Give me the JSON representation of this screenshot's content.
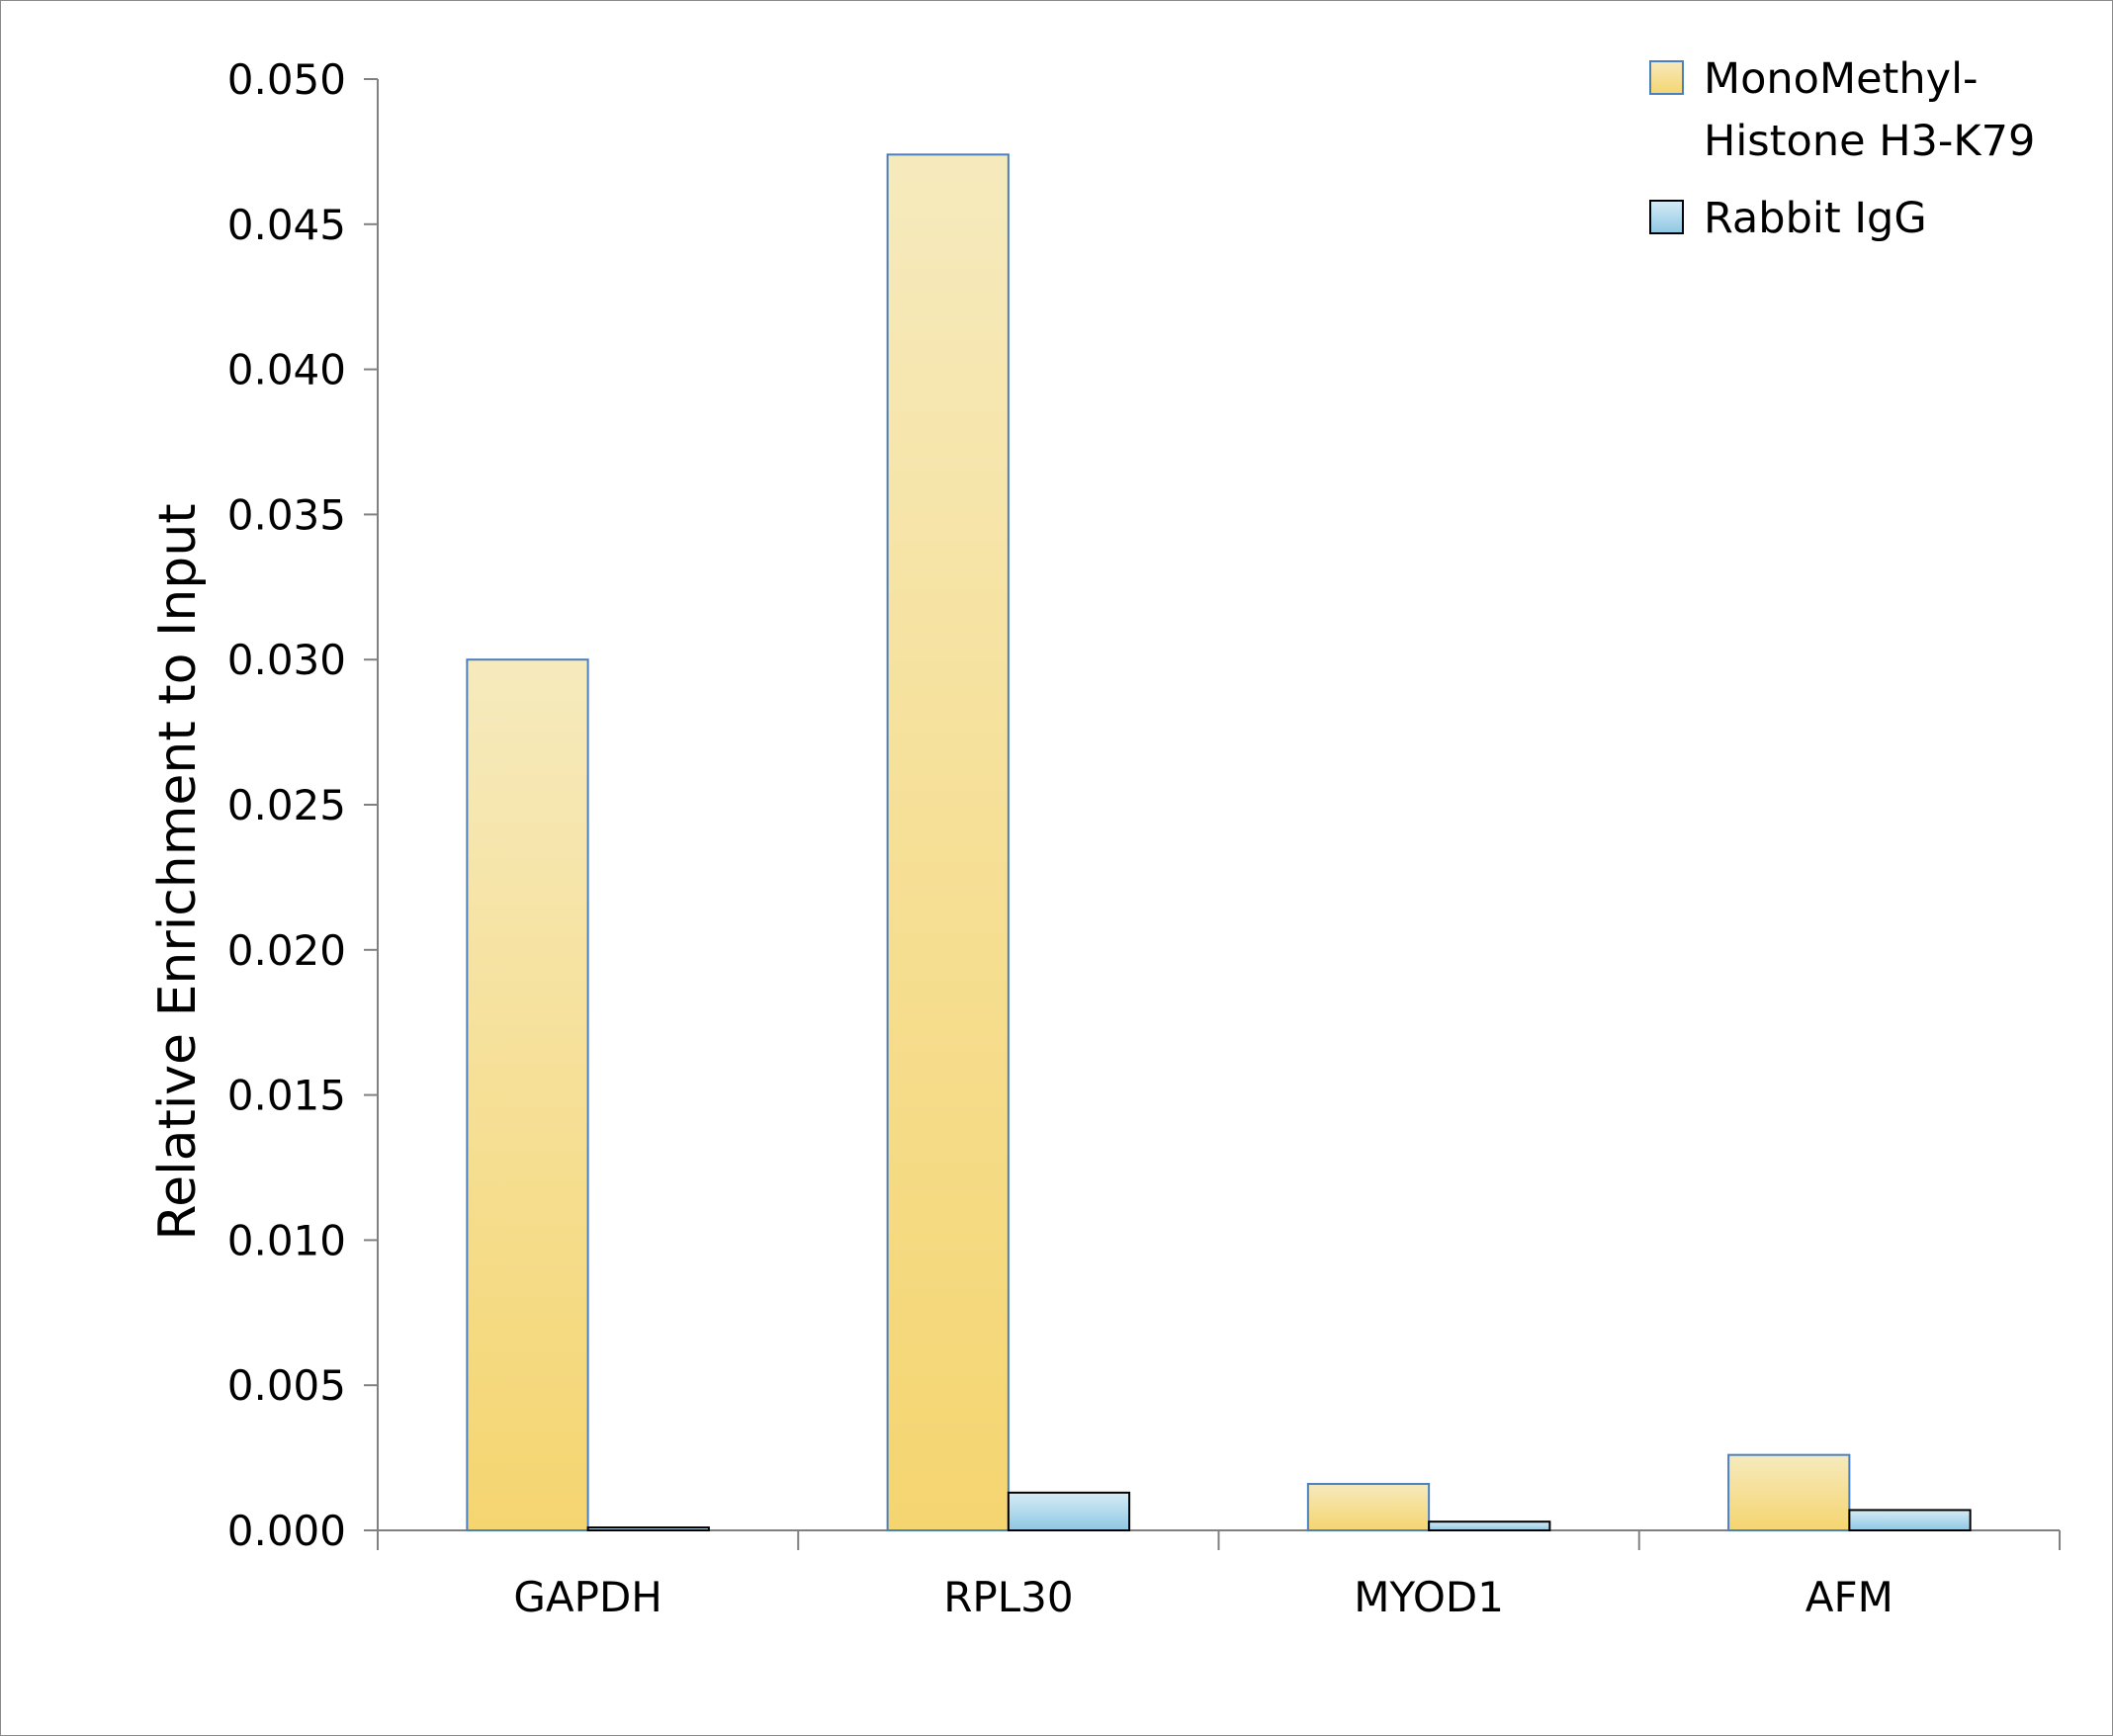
{
  "colors": {
    "series_a_top": "#f6eabd",
    "series_a_bottom": "#f5d570",
    "series_a_stroke": "#4a7fc0",
    "series_b_top": "#d6ecf6",
    "series_b_bottom": "#8ec7e3",
    "series_b_stroke": "#000000",
    "axis": "#808080"
  },
  "chart_data": {
    "type": "bar",
    "ylabel": "Relative Enrichment to Input",
    "xlabel": "",
    "ylim": [
      0,
      0.05
    ],
    "yticks": [
      "0.000",
      "0.005",
      "0.010",
      "0.015",
      "0.020",
      "0.025",
      "0.030",
      "0.035",
      "0.040",
      "0.045",
      "0.050"
    ],
    "categories": [
      "GAPDH",
      "RPL30",
      "MYOD1",
      "AFM"
    ],
    "series": [
      {
        "name": "MonoMethyl-Histone H3-K79",
        "legend_lines": [
          "MonoMethyl-",
          "Histone H3-K79"
        ],
        "values": [
          0.03,
          0.0474,
          0.0016,
          0.0026
        ]
      },
      {
        "name": "Rabbit IgG",
        "legend_lines": [
          "Rabbit IgG"
        ],
        "values": [
          0.0001,
          0.0013,
          0.0003,
          0.0007
        ]
      }
    ],
    "legend_position": "top-right",
    "grid": false
  }
}
